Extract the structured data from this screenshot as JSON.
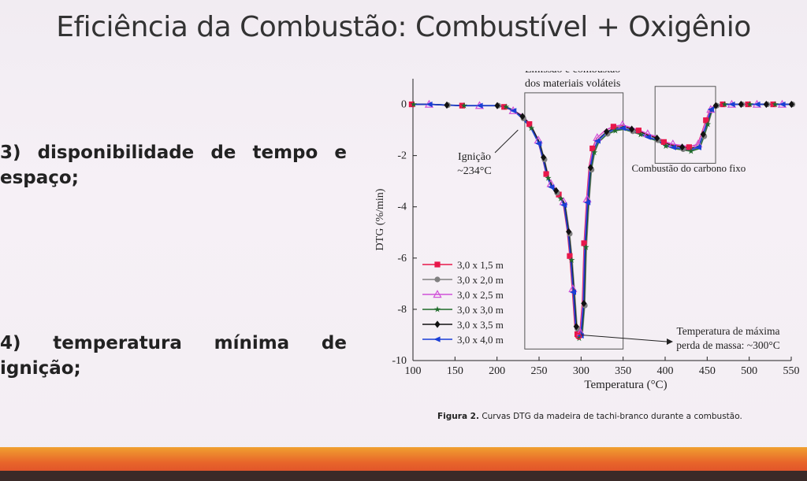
{
  "slide": {
    "title": "Eficiência da Combustão: Combustível + Oxigênio",
    "bullet3_line1": [
      "3)",
      "disponibilidade",
      "de",
      "tempo",
      "e"
    ],
    "bullet3_line2": "espaço;",
    "bullet4_line1": [
      "4)",
      "temperatura",
      "mínima",
      "de"
    ],
    "bullet4_line2": "ignição;",
    "caption_bold": "Figura 2.",
    "caption_text": " Curvas DTG da madeira de tachi-branco durante a combustão."
  },
  "chart_data": {
    "type": "line",
    "xlabel": "Temperatura (°C)",
    "ylabel": "DTG (%/min)",
    "xlim": [
      100,
      550
    ],
    "ylim": [
      -10,
      1
    ],
    "xticks": [
      100,
      150,
      200,
      250,
      300,
      350,
      400,
      450,
      500,
      550
    ],
    "yticks": [
      0,
      -2,
      -4,
      -6,
      -8,
      -10
    ],
    "legend_position": "lower-left",
    "series": [
      {
        "name": "3,0 x 1,5 m",
        "color": "#e8174a",
        "marker": "square"
      },
      {
        "name": "3,0 x 2,0 m",
        "color": "#808080",
        "marker": "circle"
      },
      {
        "name": "3,0 x 2,5 m",
        "color": "#d050d8",
        "marker": "triangle-open"
      },
      {
        "name": "3,0 x 3,0 m",
        "color": "#1e6b2a",
        "marker": "star"
      },
      {
        "name": "3,0 x 3,5 m",
        "color": "#111111",
        "marker": "diamond"
      },
      {
        "name": "3,0 x 4,0 m",
        "color": "#1a3fd6",
        "marker": "triangle-left"
      }
    ],
    "curve": {
      "x": [
        100,
        120,
        140,
        160,
        180,
        200,
        210,
        220,
        230,
        240,
        250,
        255,
        260,
        265,
        270,
        275,
        280,
        285,
        288,
        291,
        294,
        297,
        300,
        303,
        305,
        308,
        311,
        315,
        320,
        330,
        340,
        350,
        360,
        370,
        380,
        390,
        400,
        410,
        420,
        430,
        440,
        445,
        450,
        455,
        460,
        470,
        480,
        490,
        500,
        510,
        520,
        530,
        540,
        550
      ],
      "y": [
        0,
        0,
        -0.03,
        -0.05,
        -0.05,
        -0.05,
        -0.1,
        -0.25,
        -0.5,
        -0.85,
        -1.5,
        -2.1,
        -2.8,
        -3.2,
        -3.4,
        -3.6,
        -3.9,
        -5.0,
        -6.0,
        -7.3,
        -8.7,
        -9.05,
        -9.0,
        -7.8,
        -5.5,
        -3.8,
        -2.5,
        -1.8,
        -1.4,
        -1.1,
        -0.95,
        -0.9,
        -1.0,
        -1.1,
        -1.25,
        -1.35,
        -1.55,
        -1.65,
        -1.7,
        -1.75,
        -1.65,
        -1.2,
        -0.7,
        -0.2,
        -0.05,
        0,
        0,
        0,
        0,
        0,
        0,
        0,
        0,
        0
      ]
    },
    "annotations": {
      "ignition_line1": "Ignição",
      "ignition_line2": "~234°C",
      "volatiles_line1": "Emissão e combustão",
      "volatiles_line2": "dos materiais voláteis",
      "fixed_carbon": "Combustão do carbono fixo",
      "max_loss_line1": "Temperatura de máxima",
      "max_loss_line2": "perda de massa: ~300°C"
    },
    "boxes": [
      {
        "label": "volatiles",
        "x": [
          233,
          350
        ],
        "y": [
          0.45,
          -9.55
        ]
      },
      {
        "label": "fixed_carbon",
        "x": [
          388,
          460
        ],
        "y": [
          0.7,
          -2.3
        ]
      }
    ]
  }
}
